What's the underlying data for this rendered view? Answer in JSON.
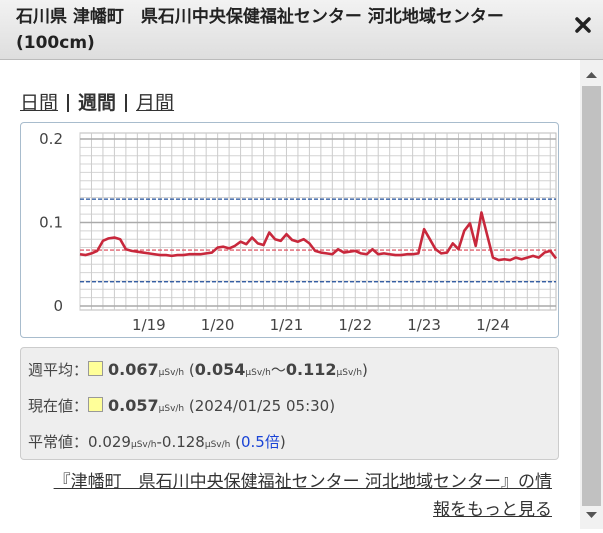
{
  "header": {
    "title": "石川県 津幡町　県石川中央保健福祉センター 河北地域センター (100cm)"
  },
  "tabs": {
    "items": [
      "日間",
      "週間",
      "月間"
    ],
    "active": 1
  },
  "chart_data": {
    "type": "line",
    "categories": [
      null,
      null,
      null,
      null,
      null,
      null,
      null,
      null,
      null,
      null,
      null,
      null,
      "1/19",
      null,
      null,
      null,
      null,
      null,
      null,
      null,
      null,
      null,
      null,
      null,
      "1/20",
      null,
      null,
      null,
      null,
      null,
      null,
      null,
      null,
      null,
      null,
      null,
      "1/21",
      null,
      null,
      null,
      null,
      null,
      null,
      null,
      null,
      null,
      null,
      null,
      "1/22",
      null,
      null,
      null,
      null,
      null,
      null,
      null,
      null,
      null,
      null,
      null,
      "1/23",
      null,
      null,
      null,
      null,
      null,
      null,
      null,
      null,
      null,
      null,
      null,
      "1/24",
      null,
      null,
      null,
      null,
      null,
      null,
      null,
      null,
      null,
      null,
      null
    ],
    "values": [
      0.062,
      0.061,
      0.063,
      0.066,
      0.078,
      0.081,
      0.082,
      0.08,
      0.068,
      0.066,
      0.065,
      0.064,
      0.063,
      0.062,
      0.061,
      0.061,
      0.06,
      0.061,
      0.061,
      0.062,
      0.062,
      0.062,
      0.063,
      0.064,
      0.07,
      0.071,
      0.069,
      0.072,
      0.077,
      0.074,
      0.082,
      0.075,
      0.073,
      0.088,
      0.08,
      0.078,
      0.086,
      0.079,
      0.077,
      0.08,
      0.075,
      0.066,
      0.064,
      0.063,
      0.062,
      0.068,
      0.064,
      0.065,
      0.066,
      0.063,
      0.062,
      0.068,
      0.062,
      0.063,
      0.062,
      0.061,
      0.061,
      0.062,
      0.062,
      0.063,
      0.092,
      0.08,
      0.068,
      0.063,
      0.064,
      0.075,
      0.068,
      0.09,
      0.099,
      0.072,
      0.112,
      0.085,
      0.058,
      0.055,
      0.056,
      0.055,
      0.058,
      0.056,
      0.058,
      0.06,
      0.058,
      0.064,
      0.066,
      0.057
    ],
    "color": "#c8283c",
    "ylim": [
      0,
      0.2
    ],
    "yticks": [
      0,
      0.1,
      0.2
    ],
    "grid": true,
    "reference_lines": [
      {
        "value": 0.128,
        "color": "#1f4e9a"
      },
      {
        "value": 0.067,
        "color": "#d94050"
      },
      {
        "value": 0.029,
        "color": "#1f4e9a"
      }
    ]
  },
  "stats": {
    "rows": [
      {
        "label": "週平均：",
        "swatch": true,
        "parts": [
          {
            "text": "0.067",
            "style": "bold"
          },
          {
            "text": "μSv/h",
            "style": "unit"
          },
          {
            "text": " ("
          },
          {
            "text": "0.054",
            "style": "bold"
          },
          {
            "text": "μSv/h",
            "style": "unit"
          },
          {
            "text": "～"
          },
          {
            "text": "0.112",
            "style": "bold"
          },
          {
            "text": "μSv/h",
            "style": "unit"
          },
          {
            "text": ")"
          }
        ]
      },
      {
        "label": "現在値：",
        "swatch": true,
        "parts": [
          {
            "text": "0.057",
            "style": "bold"
          },
          {
            "text": "μSv/h",
            "style": "unit"
          },
          {
            "text": " (2024/01/25 05:30)"
          }
        ]
      },
      {
        "label": "平常値：",
        "swatch": false,
        "parts": [
          {
            "text": "0.029"
          },
          {
            "text": "μSv/h",
            "style": "unit"
          },
          {
            "text": "-0.128"
          },
          {
            "text": "μSv/h",
            "style": "unit"
          },
          {
            "text": " ("
          },
          {
            "text": "0.5倍",
            "style": "blue"
          },
          {
            "text": ")"
          }
        ]
      }
    ]
  },
  "link": {
    "text": "『津幡町　県石川中央保健福祉センター 河北地域センター』の情報をもっと見る"
  }
}
